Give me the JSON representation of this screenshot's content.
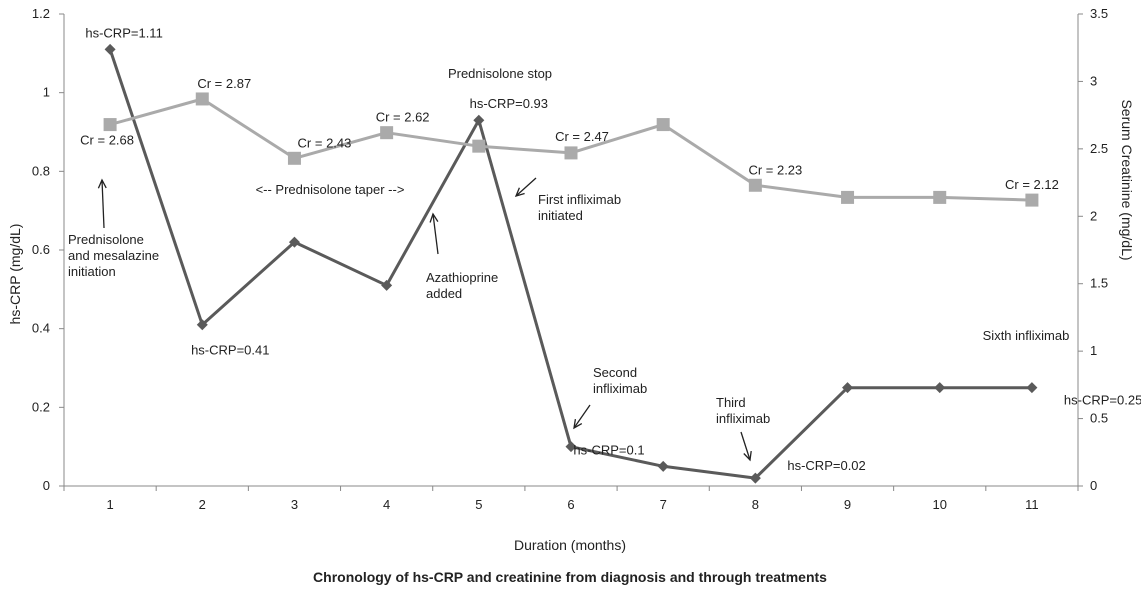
{
  "chart_data": {
    "type": "line",
    "title": "Chronology of hs-CRP and creatinine from diagnosis and through treatments",
    "xlabel": "Duration (months)",
    "ylabel_left": "hs-CRP (mg/dL)",
    "ylabel_right": "Serum Creatinine (mg/dL)",
    "x": [
      1,
      2,
      3,
      4,
      5,
      6,
      7,
      8,
      9,
      10,
      11
    ],
    "xticks": [
      "1",
      "2",
      "3",
      "4",
      "5",
      "6",
      "7",
      "8",
      "9",
      "10",
      "11"
    ],
    "ylim_left": [
      0,
      1.2
    ],
    "yticks_left": [
      "0",
      "0.2",
      "0.4",
      "0.6",
      "0.8",
      "1",
      "1.2"
    ],
    "ylim_right": [
      0,
      3.5
    ],
    "yticks_right": [
      "0",
      "0.5",
      "1",
      "1.5",
      "2",
      "2.5",
      "3",
      "3.5"
    ],
    "grid": false,
    "series": [
      {
        "axis": "left",
        "marker": "diamond",
        "color": "#5a5a5a",
        "values": [
          1.11,
          0.41,
          0.62,
          0.51,
          0.93,
          0.1,
          0.05,
          0.02,
          0.25,
          0.25,
          0.25
        ]
      },
      {
        "axis": "right",
        "marker": "square",
        "color": "#aaaaaa",
        "values": [
          2.68,
          2.87,
          2.43,
          2.62,
          2.52,
          2.47,
          2.68,
          2.23,
          2.14,
          2.14,
          2.12
        ]
      }
    ],
    "point_labels": [
      {
        "text": "hs-CRP=1.11",
        "x": 1,
        "y": 1.11,
        "axis": "left"
      },
      {
        "text": "hs-CRP=0.41",
        "x": 2,
        "y": 0.41,
        "axis": "left"
      },
      {
        "text": "hs-CRP=0.93",
        "x": 5,
        "y": 0.93,
        "axis": "left"
      },
      {
        "text": "hs-CRP=0.1",
        "x": 6,
        "y": 0.1,
        "axis": "left"
      },
      {
        "text": "hs-CRP=0.02",
        "x": 8,
        "y": 0.02,
        "axis": "left"
      },
      {
        "text": "hs-CRP=0.25",
        "x": 11,
        "y": 0.25,
        "axis": "left"
      },
      {
        "text": "Cr = 2.68",
        "x": 1,
        "y": 2.68,
        "axis": "right"
      },
      {
        "text": "Cr = 2.87",
        "x": 2,
        "y": 2.87,
        "axis": "right"
      },
      {
        "text": "Cr = 2.43",
        "x": 3,
        "y": 2.43,
        "axis": "right"
      },
      {
        "text": "Cr = 2.62",
        "x": 4,
        "y": 2.62,
        "axis": "right"
      },
      {
        "text": "Cr = 2.47",
        "x": 6,
        "y": 2.47,
        "axis": "right"
      },
      {
        "text": "Cr = 2.23",
        "x": 8,
        "y": 2.23,
        "axis": "right"
      },
      {
        "text": "Cr = 2.12",
        "x": 11,
        "y": 2.12,
        "axis": "right"
      }
    ],
    "annotations": [
      {
        "lines": [
          "Prednisolone",
          "and mesalazine",
          "initiation"
        ]
      },
      {
        "lines": [
          "<-- Prednisolone taper -->"
        ]
      },
      {
        "lines": [
          "Azathioprine",
          "added"
        ]
      },
      {
        "lines": [
          "Prednisolone stop"
        ]
      },
      {
        "lines": [
          "First infliximab",
          "initiated"
        ]
      },
      {
        "lines": [
          "Second",
          "infliximab"
        ]
      },
      {
        "lines": [
          "Third",
          "infliximab"
        ]
      },
      {
        "lines": [
          "Sixth infliximab"
        ]
      }
    ]
  }
}
